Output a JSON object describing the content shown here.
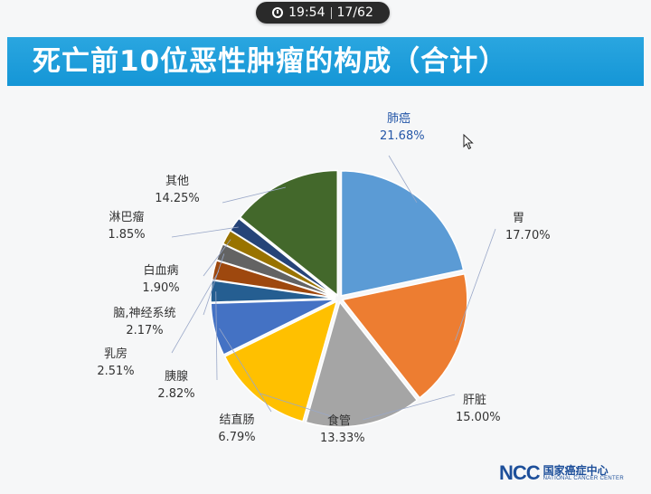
{
  "status": {
    "time": "19:54",
    "page": "17/62"
  },
  "title": "死亡前10位恶性肿瘤的构成（合计）",
  "logo": {
    "text": "NCC",
    "name_cn": "国家癌症中心",
    "name_en": "NATIONAL CANCER CENTER"
  },
  "chart_data": {
    "type": "pie",
    "title": "",
    "unit": "%",
    "start_angle_deg": 0,
    "direction": "clockwise",
    "slices": [
      {
        "name": "肺癌",
        "value": 21.68,
        "label": "21.68%",
        "color": "#5b9bd5",
        "label_color": "#2557a8"
      },
      {
        "name": "胃",
        "value": 17.7,
        "label": "17.70%",
        "color": "#ed7d31"
      },
      {
        "name": "肝脏",
        "value": 15.0,
        "label": "15.00%",
        "color": "#a5a5a5"
      },
      {
        "name": "食管",
        "value": 13.33,
        "label": "13.33%",
        "color": "#ffc000"
      },
      {
        "name": "结直肠",
        "value": 6.79,
        "label": "6.79%",
        "color": "#4472c4"
      },
      {
        "name": "胰腺",
        "value": 2.82,
        "label": "2.82%",
        "color": "#255e91"
      },
      {
        "name": "乳房",
        "value": 2.51,
        "label": "2.51%",
        "color": "#9e480e"
      },
      {
        "name": "脑,神经系统",
        "value": 2.17,
        "label": "2.17%",
        "color": "#636363"
      },
      {
        "name": "白血病",
        "value": 1.9,
        "label": "1.90%",
        "color": "#997300"
      },
      {
        "name": "淋巴瘤",
        "value": 1.85,
        "label": "1.85%",
        "color": "#264478"
      },
      {
        "name": "其他",
        "value": 14.25,
        "label": "14.25%",
        "color": "#43682b"
      }
    ]
  }
}
